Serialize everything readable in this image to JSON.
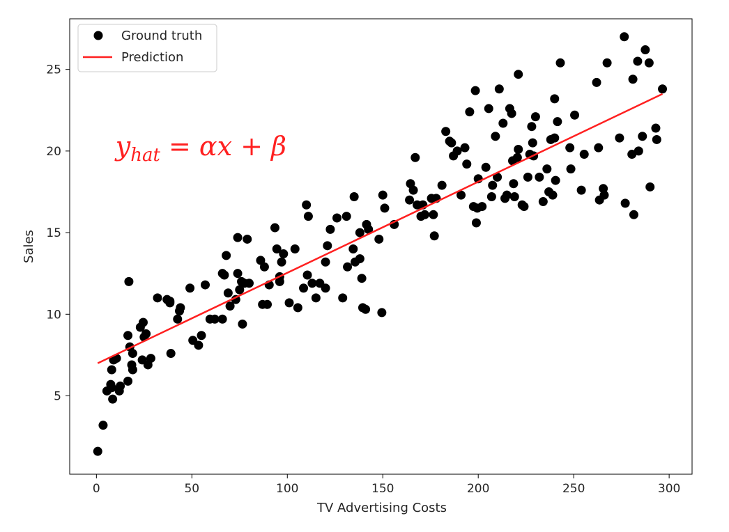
{
  "chart_data": {
    "type": "scatter",
    "title": "",
    "xlabel": "TV Advertising Costs",
    "ylabel": "Sales",
    "xlim": [
      -14,
      312
    ],
    "ylim": [
      0.2,
      28.1
    ],
    "xticks": [
      0,
      50,
      100,
      150,
      200,
      250,
      300
    ],
    "yticks": [
      5,
      10,
      15,
      20,
      25
    ],
    "grid": false,
    "legend": {
      "position": "top-left",
      "entries": [
        "Ground truth",
        "Prediction"
      ]
    },
    "colors": {
      "points": "#000000",
      "line": "#ff2020",
      "annotation": "#ff2020"
    },
    "annotation": {
      "text": "y_hat = αx + β",
      "x": 10,
      "y": 20
    },
    "series": [
      {
        "name": "Ground truth",
        "kind": "scatter",
        "points": [
          [
            0.7,
            1.6
          ],
          [
            3.5,
            3.2
          ],
          [
            5.5,
            5.3
          ],
          [
            8,
            5.5
          ],
          [
            8.5,
            4.8
          ],
          [
            7.5,
            5.7
          ],
          [
            8,
            6.6
          ],
          [
            9,
            7.2
          ],
          [
            10.5,
            7.3
          ],
          [
            12,
            5.3
          ],
          [
            12.5,
            5.6
          ],
          [
            17,
            12.0
          ],
          [
            16.5,
            8.7
          ],
          [
            16.5,
            5.9
          ],
          [
            17.5,
            8.0
          ],
          [
            19,
            7.6
          ],
          [
            18.5,
            6.9
          ],
          [
            19,
            6.6
          ],
          [
            23,
            9.2
          ],
          [
            24.5,
            9.5
          ],
          [
            24,
            7.2
          ],
          [
            25,
            8.6
          ],
          [
            26,
            8.8
          ],
          [
            27,
            6.9
          ],
          [
            28.5,
            7.3
          ],
          [
            32,
            11.0
          ],
          [
            37,
            10.9
          ],
          [
            38.5,
            10.7
          ],
          [
            38.5,
            10.8
          ],
          [
            39,
            7.6
          ],
          [
            42.5,
            9.7
          ],
          [
            43.5,
            10.2
          ],
          [
            44,
            10.4
          ],
          [
            49,
            11.6
          ],
          [
            50.5,
            8.4
          ],
          [
            53.5,
            8.1
          ],
          [
            55,
            8.7
          ],
          [
            57,
            11.8
          ],
          [
            59.5,
            9.7
          ],
          [
            62,
            9.7
          ],
          [
            66,
            9.7
          ],
          [
            66,
            12.5
          ],
          [
            67,
            12.4
          ],
          [
            68,
            13.6
          ],
          [
            69,
            11.3
          ],
          [
            70,
            10.5
          ],
          [
            73,
            10.9
          ],
          [
            74,
            12.5
          ],
          [
            74,
            14.7
          ],
          [
            75,
            11.5
          ],
          [
            76,
            12.0
          ],
          [
            76.5,
            9.4
          ],
          [
            77.5,
            11.9
          ],
          [
            79,
            14.6
          ],
          [
            80,
            11.9
          ],
          [
            86,
            13.3
          ],
          [
            87,
            10.6
          ],
          [
            88,
            12.9
          ],
          [
            89.5,
            10.6
          ],
          [
            90.5,
            11.8
          ],
          [
            93.5,
            15.3
          ],
          [
            94.5,
            14.0
          ],
          [
            96,
            12.0
          ],
          [
            96,
            12.3
          ],
          [
            97,
            13.2
          ],
          [
            98,
            13.7
          ],
          [
            101,
            10.7
          ],
          [
            104,
            14.0
          ],
          [
            105.5,
            10.4
          ],
          [
            108.5,
            11.6
          ],
          [
            110,
            16.7
          ],
          [
            110.5,
            12.4
          ],
          [
            111,
            16.0
          ],
          [
            113,
            11.9
          ],
          [
            115,
            11.0
          ],
          [
            117,
            11.9
          ],
          [
            120,
            11.6
          ],
          [
            120,
            13.2
          ],
          [
            121,
            14.2
          ],
          [
            122.5,
            15.2
          ],
          [
            126,
            15.9
          ],
          [
            129,
            11.0
          ],
          [
            131,
            16.0
          ],
          [
            131.5,
            12.9
          ],
          [
            134.5,
            14.0
          ],
          [
            135,
            17.2
          ],
          [
            135.5,
            13.2
          ],
          [
            138,
            13.4
          ],
          [
            138,
            15.0
          ],
          [
            139,
            12.2
          ],
          [
            139.5,
            10.4
          ],
          [
            141,
            10.3
          ],
          [
            141.5,
            15.5
          ],
          [
            142.5,
            15.2
          ],
          [
            148,
            14.6
          ],
          [
            149.5,
            10.1
          ],
          [
            150,
            17.3
          ],
          [
            151,
            16.5
          ],
          [
            156,
            15.5
          ],
          [
            164,
            17.0
          ],
          [
            164.5,
            18.0
          ],
          [
            166,
            17.6
          ],
          [
            167,
            19.6
          ],
          [
            168,
            16.7
          ],
          [
            170,
            16.0
          ],
          [
            171,
            16.7
          ],
          [
            172,
            16.1
          ],
          [
            175.5,
            17.1
          ],
          [
            176.5,
            16.1
          ],
          [
            177,
            14.8
          ],
          [
            178,
            17.1
          ],
          [
            181,
            17.9
          ],
          [
            183,
            21.2
          ],
          [
            185,
            20.6
          ],
          [
            186,
            20.5
          ],
          [
            187,
            19.7
          ],
          [
            189,
            20.0
          ],
          [
            191,
            17.3
          ],
          [
            193,
            20.2
          ],
          [
            194,
            19.2
          ],
          [
            195.5,
            22.4
          ],
          [
            197.5,
            16.6
          ],
          [
            198.5,
            23.7
          ],
          [
            199,
            15.6
          ],
          [
            199.5,
            16.5
          ],
          [
            200,
            18.3
          ],
          [
            202,
            16.6
          ],
          [
            204,
            19.0
          ],
          [
            205.5,
            22.6
          ],
          [
            207,
            17.2
          ],
          [
            207.5,
            17.9
          ],
          [
            209,
            20.9
          ],
          [
            210,
            18.4
          ],
          [
            211,
            23.8
          ],
          [
            213,
            21.7
          ],
          [
            214,
            17.1
          ],
          [
            215,
            17.3
          ],
          [
            216.5,
            22.6
          ],
          [
            217.5,
            22.3
          ],
          [
            218,
            19.4
          ],
          [
            218.5,
            18.0
          ],
          [
            219,
            17.2
          ],
          [
            220.5,
            19.6
          ],
          [
            221,
            20.1
          ],
          [
            221,
            24.7
          ],
          [
            223,
            16.7
          ],
          [
            224,
            16.6
          ],
          [
            226,
            18.4
          ],
          [
            227,
            19.8
          ],
          [
            228,
            21.5
          ],
          [
            228.5,
            20.5
          ],
          [
            229,
            19.7
          ],
          [
            230,
            22.1
          ],
          [
            232,
            18.4
          ],
          [
            234,
            16.9
          ],
          [
            236,
            18.9
          ],
          [
            237,
            17.5
          ],
          [
            238,
            20.7
          ],
          [
            239,
            17.3
          ],
          [
            240,
            20.8
          ],
          [
            240,
            23.2
          ],
          [
            240.5,
            18.2
          ],
          [
            241.5,
            21.8
          ],
          [
            243,
            25.4
          ],
          [
            248,
            20.2
          ],
          [
            248.5,
            18.9
          ],
          [
            250.5,
            22.2
          ],
          [
            254,
            17.6
          ],
          [
            255.5,
            19.8
          ],
          [
            262,
            24.2
          ],
          [
            263,
            20.2
          ],
          [
            263.5,
            17.0
          ],
          [
            265.5,
            17.7
          ],
          [
            266,
            17.3
          ],
          [
            267.5,
            25.4
          ],
          [
            274,
            20.8
          ],
          [
            276.5,
            27.0
          ],
          [
            277,
            16.8
          ],
          [
            280.5,
            19.8
          ],
          [
            281,
            24.4
          ],
          [
            281.5,
            16.1
          ],
          [
            283.5,
            25.5
          ],
          [
            284,
            20.0
          ],
          [
            286,
            20.9
          ],
          [
            287.5,
            26.2
          ],
          [
            289.5,
            25.4
          ],
          [
            290,
            17.8
          ],
          [
            293,
            21.4
          ],
          [
            293.5,
            20.7
          ],
          [
            296.5,
            23.8
          ]
        ]
      },
      {
        "name": "Prediction",
        "kind": "line",
        "x": [
          0.7,
          296.5
        ],
        "y": [
          7.0,
          23.5
        ]
      }
    ]
  }
}
